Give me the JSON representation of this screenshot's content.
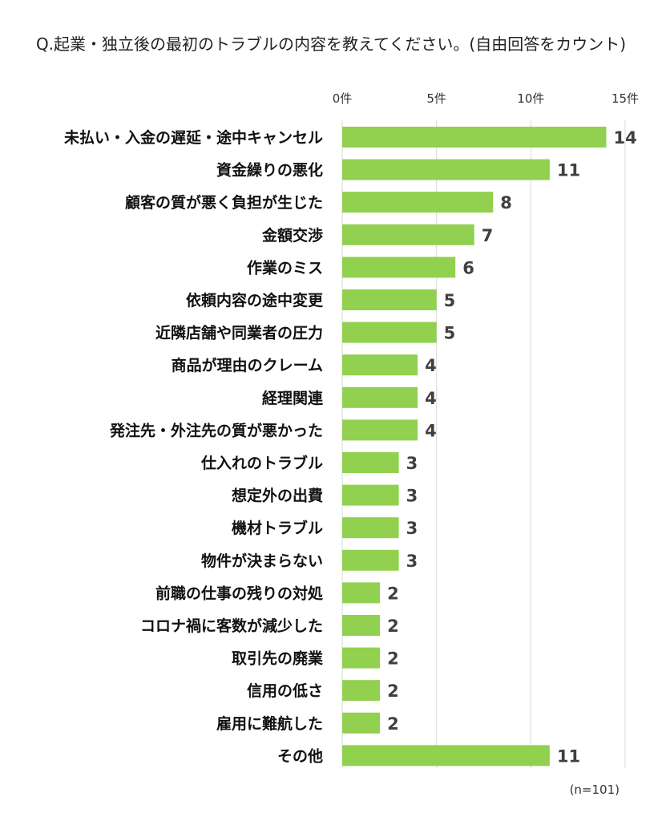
{
  "chart_data": {
    "type": "bar",
    "orientation": "horizontal",
    "title": "Q.起業・独立後の最初のトラブルの内容を教えてください。(自由回答をカウント)",
    "sample_note": "(n=101)",
    "xlim": [
      0,
      15
    ],
    "x_ticks": [
      {
        "value": 0,
        "label": "0件"
      },
      {
        "value": 5,
        "label": "5件"
      },
      {
        "value": 10,
        "label": "10件"
      },
      {
        "value": 15,
        "label": "15件"
      }
    ],
    "grid": true,
    "bar_color": "#92d050",
    "categories": [
      "未払い・入金の遅延・途中キャンセル",
      "資金繰りの悪化",
      "顧客の質が悪く負担が生じた",
      "金額交渉",
      "作業のミス",
      "依頼内容の途中変更",
      "近隣店舗や同業者の圧力",
      "商品が理由のクレーム",
      "経理関連",
      "発注先・外注先の質が悪かった",
      "仕入れのトラブル",
      "想定外の出費",
      "機材トラブル",
      "物件が決まらない",
      "前職の仕事の残りの対処",
      "コロナ禍に客数が減少した",
      "取引先の廃業",
      "信用の低さ",
      "雇用に難航した",
      "その他"
    ],
    "values": [
      14,
      11,
      8,
      7,
      6,
      5,
      5,
      4,
      4,
      4,
      3,
      3,
      3,
      3,
      2,
      2,
      2,
      2,
      2,
      11
    ]
  }
}
